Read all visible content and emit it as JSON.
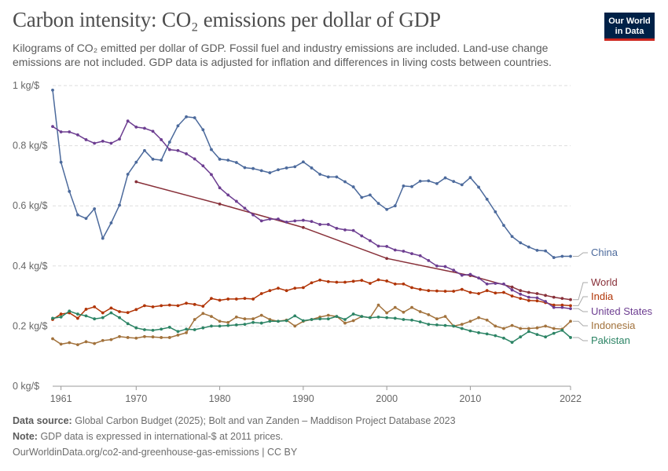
{
  "header": {
    "title": "Carbon intensity: CO₂ emissions per dollar of GDP",
    "subtitle_line1": "Kilograms of CO₂ emitted per dollar of GDP. Fossil fuel and industry emissions are included. Land-use change",
    "subtitle_line2": "emissions are not included. GDP data is adjusted for inflation and differences in living costs between countries."
  },
  "logo": {
    "line1": "Our World",
    "line2": "in Data"
  },
  "footer": {
    "source_label": "Data source:",
    "source_text": "Global Carbon Budget (2025); Bolt and van Zanden – Maddison Project Database 2023",
    "note_label": "Note:",
    "note_text": "GDP data is expressed in international-$ at 2011 prices.",
    "url": "OurWorldinData.org/co2-and-greenhouse-gas-emissions | CC BY"
  },
  "chart_data": {
    "type": "line",
    "title": "Carbon intensity: CO₂ emissions per dollar of GDP",
    "ylabel": "",
    "xlabel": "",
    "xlim": [
      1960,
      2022
    ],
    "ylim": [
      0,
      1
    ],
    "x_ticks": [
      "1961",
      "1970",
      "1980",
      "1990",
      "2000",
      "2010",
      "2022"
    ],
    "y_ticks": [
      "0 kg/$",
      "0.2 kg/$",
      "0.4 kg/$",
      "0.6 kg/$",
      "0.8 kg/$",
      "1 kg/$"
    ],
    "grid": "horizontal dashed",
    "legend": "inline labels right",
    "series": [
      {
        "name": "China",
        "color": "#4c6a9c",
        "x": [
          1960,
          1961,
          1962,
          1963,
          1964,
          1965,
          1966,
          1967,
          1968,
          1969,
          1970,
          1971,
          1972,
          1973,
          1974,
          1975,
          1976,
          1977,
          1978,
          1979,
          1980,
          1981,
          1982,
          1983,
          1984,
          1985,
          1986,
          1987,
          1988,
          1989,
          1990,
          1991,
          1992,
          1993,
          1994,
          1995,
          1996,
          1997,
          1998,
          1999,
          2000,
          2001,
          2002,
          2003,
          2004,
          2005,
          2006,
          2007,
          2008,
          2009,
          2010,
          2011,
          2012,
          2013,
          2014,
          2015,
          2016,
          2017,
          2018,
          2019,
          2020,
          2021,
          2022
        ],
        "values": [
          0.985,
          0.745,
          0.648,
          0.57,
          0.558,
          0.59,
          0.492,
          0.543,
          0.602,
          0.705,
          0.745,
          0.784,
          0.755,
          0.752,
          0.812,
          0.866,
          0.896,
          0.893,
          0.853,
          0.787,
          0.755,
          0.752,
          0.744,
          0.727,
          0.724,
          0.717,
          0.71,
          0.72,
          0.726,
          0.73,
          0.746,
          0.726,
          0.705,
          0.696,
          0.696,
          0.68,
          0.663,
          0.628,
          0.636,
          0.608,
          0.588,
          0.6,
          0.666,
          0.664,
          0.682,
          0.683,
          0.674,
          0.693,
          0.681,
          0.67,
          0.694,
          0.662,
          0.622,
          0.58,
          0.535,
          0.498,
          0.477,
          0.463,
          0.452,
          0.45,
          0.428,
          0.432,
          0.432
        ]
      },
      {
        "name": "World",
        "color": "#883039",
        "x": [
          1970,
          1980,
          1990,
          2000,
          2010,
          2015,
          2016,
          2017,
          2018,
          2019,
          2020,
          2021,
          2022
        ],
        "values": [
          0.68,
          0.606,
          0.528,
          0.425,
          0.368,
          0.33,
          0.318,
          0.312,
          0.308,
          0.302,
          0.296,
          0.292,
          0.288
        ]
      },
      {
        "name": "India",
        "color": "#b13507",
        "x": [
          1960,
          1961,
          1962,
          1963,
          1964,
          1965,
          1966,
          1967,
          1968,
          1969,
          1970,
          1971,
          1972,
          1973,
          1974,
          1975,
          1976,
          1977,
          1978,
          1979,
          1980,
          1981,
          1982,
          1983,
          1984,
          1985,
          1986,
          1987,
          1988,
          1989,
          1990,
          1991,
          1992,
          1993,
          1994,
          1995,
          1996,
          1997,
          1998,
          1999,
          2000,
          2001,
          2002,
          2003,
          2004,
          2005,
          2006,
          2007,
          2008,
          2009,
          2010,
          2011,
          2012,
          2013,
          2014,
          2015,
          2016,
          2017,
          2018,
          2019,
          2020,
          2021,
          2022
        ],
        "values": [
          0.222,
          0.24,
          0.244,
          0.226,
          0.256,
          0.264,
          0.244,
          0.26,
          0.248,
          0.245,
          0.255,
          0.268,
          0.264,
          0.268,
          0.27,
          0.268,
          0.276,
          0.272,
          0.266,
          0.292,
          0.286,
          0.29,
          0.29,
          0.292,
          0.29,
          0.308,
          0.318,
          0.326,
          0.318,
          0.326,
          0.328,
          0.344,
          0.353,
          0.348,
          0.346,
          0.346,
          0.349,
          0.352,
          0.342,
          0.354,
          0.35,
          0.34,
          0.34,
          0.328,
          0.322,
          0.318,
          0.317,
          0.316,
          0.316,
          0.322,
          0.312,
          0.308,
          0.318,
          0.31,
          0.312,
          0.3,
          0.292,
          0.285,
          0.284,
          0.278,
          0.27,
          0.27,
          0.268
        ]
      },
      {
        "name": "United States",
        "color": "#6d3e91",
        "x": [
          1960,
          1961,
          1962,
          1963,
          1964,
          1965,
          1966,
          1967,
          1968,
          1969,
          1970,
          1971,
          1972,
          1973,
          1974,
          1975,
          1976,
          1977,
          1978,
          1979,
          1980,
          1981,
          1982,
          1983,
          1984,
          1985,
          1986,
          1987,
          1988,
          1989,
          1990,
          1991,
          1992,
          1993,
          1994,
          1995,
          1996,
          1997,
          1998,
          1999,
          2000,
          2001,
          2002,
          2003,
          2004,
          2005,
          2006,
          2007,
          2008,
          2009,
          2010,
          2011,
          2012,
          2013,
          2014,
          2015,
          2016,
          2017,
          2018,
          2019,
          2020,
          2021,
          2022
        ],
        "values": [
          0.864,
          0.846,
          0.846,
          0.836,
          0.82,
          0.808,
          0.815,
          0.808,
          0.822,
          0.882,
          0.862,
          0.858,
          0.848,
          0.82,
          0.787,
          0.784,
          0.773,
          0.756,
          0.733,
          0.704,
          0.66,
          0.636,
          0.615,
          0.592,
          0.57,
          0.55,
          0.556,
          0.556,
          0.546,
          0.55,
          0.552,
          0.548,
          0.538,
          0.538,
          0.525,
          0.52,
          0.518,
          0.5,
          0.484,
          0.466,
          0.465,
          0.453,
          0.449,
          0.441,
          0.434,
          0.418,
          0.4,
          0.398,
          0.386,
          0.369,
          0.372,
          0.36,
          0.34,
          0.342,
          0.34,
          0.32,
          0.306,
          0.296,
          0.294,
          0.282,
          0.262,
          0.262,
          0.258
        ]
      },
      {
        "name": "Indonesia",
        "color": "#a2723c",
        "x": [
          1960,
          1961,
          1962,
          1963,
          1964,
          1965,
          1966,
          1967,
          1968,
          1969,
          1970,
          1971,
          1972,
          1973,
          1974,
          1975,
          1976,
          1977,
          1978,
          1979,
          1980,
          1981,
          1982,
          1983,
          1984,
          1985,
          1986,
          1987,
          1988,
          1989,
          1990,
          1991,
          1992,
          1993,
          1994,
          1995,
          1996,
          1997,
          1998,
          1999,
          2000,
          2001,
          2002,
          2003,
          2004,
          2005,
          2006,
          2007,
          2008,
          2009,
          2010,
          2011,
          2012,
          2013,
          2014,
          2015,
          2016,
          2017,
          2018,
          2019,
          2020,
          2021,
          2022
        ],
        "values": [
          0.158,
          0.14,
          0.145,
          0.138,
          0.148,
          0.142,
          0.152,
          0.155,
          0.165,
          0.162,
          0.16,
          0.165,
          0.164,
          0.162,
          0.162,
          0.17,
          0.178,
          0.222,
          0.242,
          0.232,
          0.216,
          0.212,
          0.23,
          0.224,
          0.224,
          0.236,
          0.222,
          0.216,
          0.22,
          0.2,
          0.216,
          0.222,
          0.23,
          0.236,
          0.232,
          0.21,
          0.218,
          0.232,
          0.228,
          0.27,
          0.244,
          0.262,
          0.246,
          0.262,
          0.248,
          0.238,
          0.224,
          0.232,
          0.2,
          0.206,
          0.216,
          0.228,
          0.22,
          0.2,
          0.192,
          0.202,
          0.192,
          0.192,
          0.194,
          0.2,
          0.192,
          0.19,
          0.216
        ]
      },
      {
        "name": "Pakistan",
        "color": "#2c8465",
        "x": [
          1960,
          1961,
          1962,
          1963,
          1964,
          1965,
          1966,
          1967,
          1968,
          1969,
          1970,
          1971,
          1972,
          1973,
          1974,
          1975,
          1976,
          1977,
          1978,
          1979,
          1980,
          1981,
          1982,
          1983,
          1984,
          1985,
          1986,
          1987,
          1988,
          1989,
          1990,
          1991,
          1992,
          1993,
          1994,
          1995,
          1996,
          1997,
          1998,
          1999,
          2000,
          2001,
          2002,
          2003,
          2004,
          2005,
          2006,
          2007,
          2008,
          2009,
          2010,
          2011,
          2012,
          2013,
          2014,
          2015,
          2016,
          2017,
          2018,
          2019,
          2020,
          2021,
          2022
        ],
        "values": [
          0.226,
          0.23,
          0.25,
          0.24,
          0.234,
          0.224,
          0.228,
          0.244,
          0.228,
          0.208,
          0.194,
          0.188,
          0.186,
          0.19,
          0.196,
          0.182,
          0.19,
          0.188,
          0.194,
          0.2,
          0.2,
          0.202,
          0.204,
          0.206,
          0.212,
          0.21,
          0.216,
          0.216,
          0.218,
          0.234,
          0.218,
          0.222,
          0.224,
          0.224,
          0.232,
          0.222,
          0.24,
          0.232,
          0.228,
          0.23,
          0.228,
          0.226,
          0.222,
          0.22,
          0.214,
          0.206,
          0.204,
          0.202,
          0.2,
          0.192,
          0.184,
          0.178,
          0.174,
          0.168,
          0.16,
          0.146,
          0.164,
          0.182,
          0.172,
          0.164,
          0.176,
          0.186,
          0.162
        ]
      }
    ]
  }
}
